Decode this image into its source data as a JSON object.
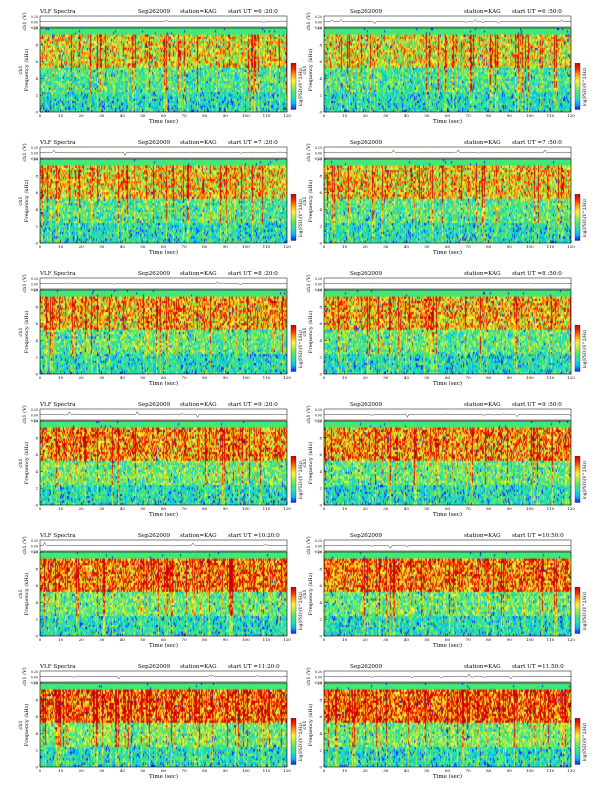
{
  "page": {
    "title_prefix": "VLF Spectra",
    "station": "station=KAG",
    "strip_ylabel": "ch1 (V)",
    "spec_ylabel": "Frequency (kHz)",
    "spec_ylabel_side": "ch1",
    "cbar_label": "log(PSD)(V^2/Hz)",
    "xlabel": "Time (sec)",
    "strip_ticks": [
      "0.20",
      "0.00",
      "-0.20"
    ],
    "freq_ticks": [
      "10",
      "8",
      "6",
      "4",
      "2",
      "0"
    ],
    "cbar_ticks": [
      "-1",
      "-3",
      "-5",
      "-7"
    ],
    "colors": {
      "spectrum": [
        "#1a1aff",
        "#00b8ff",
        "#27e0b0",
        "#47e873",
        "#a6f03c",
        "#fff23a",
        "#ffa000",
        "#ff2a00",
        "#cc0000"
      ],
      "background": "#ffffff"
    }
  },
  "chart_data": [
    {
      "type": "heatmap",
      "panel": "top-left",
      "title": "VLF Spectra",
      "date": "Sep262009",
      "station": "station=KAG",
      "start_label": "start  UT  =6 :20:0",
      "xlabel": "Time (sec)",
      "ylabel": "Frequency (kHz)",
      "xlim": [
        0,
        120
      ],
      "ylim": [
        0,
        10
      ],
      "xticks": [
        0,
        10,
        20,
        30,
        40,
        50,
        60,
        70,
        80,
        90,
        100,
        110,
        120
      ],
      "yticks": [
        0,
        2,
        4,
        6,
        8,
        10
      ],
      "colorbar": "log(PSD)(V^2/Hz)",
      "strip_ylabel": "ch1 (V)",
      "strip_ylim": [
        -0.2,
        0.2
      ]
    },
    {
      "type": "heatmap",
      "panel": "top-right",
      "title": "",
      "date": "Sep262009",
      "station": "station=KAG",
      "start_label": "start  UT  =6 :50:0",
      "xlabel": "Time (sec)",
      "ylabel": "Frequency (kHz)",
      "xlim": [
        0,
        120
      ],
      "ylim": [
        0,
        10
      ],
      "xticks": [
        0,
        10,
        20,
        30,
        40,
        50,
        60,
        70,
        80,
        90,
        100,
        110,
        120
      ],
      "yticks": [
        0,
        2,
        4,
        6,
        8,
        10
      ],
      "colorbar": "log(PSD)(V^2/Hz)",
      "strip_ylabel": "ch1 (V)",
      "strip_ylim": [
        -0.2,
        0.2
      ]
    },
    {
      "type": "heatmap",
      "panel": "row2-left",
      "title": "VLF Spectra",
      "date": "Sep262009",
      "station": "station=KAG",
      "start_label": "start  UT  =7 :20:0",
      "xlabel": "Time (sec)",
      "ylabel": "Frequency (kHz)",
      "xlim": [
        0,
        120
      ],
      "ylim": [
        0,
        10
      ],
      "xticks": [
        0,
        10,
        20,
        30,
        40,
        50,
        60,
        70,
        80,
        90,
        100,
        110,
        120
      ],
      "yticks": [
        0,
        2,
        4,
        6,
        8,
        10
      ],
      "colorbar": "log(PSD)(V^2/Hz)",
      "strip_ylabel": "ch1 (V)",
      "strip_ylim": [
        -0.2,
        0.2
      ]
    },
    {
      "type": "heatmap",
      "panel": "row2-right",
      "title": "",
      "date": "Sep262009",
      "station": "station=KAG",
      "start_label": "start  UT  =7 :50:0",
      "xlabel": "Time (sec)",
      "ylabel": "Frequency (kHz)",
      "xlim": [
        0,
        120
      ],
      "ylim": [
        0,
        10
      ],
      "xticks": [
        0,
        10,
        20,
        30,
        40,
        50,
        60,
        70,
        80,
        90,
        100,
        110,
        120
      ],
      "yticks": [
        0,
        2,
        4,
        6,
        8,
        10
      ],
      "colorbar": "log(PSD)(V^2/Hz)",
      "strip_ylabel": "ch1 (V)",
      "strip_ylim": [
        -0.2,
        0.2
      ]
    },
    {
      "type": "heatmap",
      "panel": "row3-left",
      "title": "VLF Spectra",
      "date": "Sep262009",
      "station": "station=KAG",
      "start_label": "start  UT  =8 :20:0",
      "xlabel": "Time (sec)",
      "ylabel": "Frequency (kHz)",
      "xlim": [
        0,
        120
      ],
      "ylim": [
        0,
        10
      ],
      "xticks": [
        0,
        10,
        20,
        30,
        40,
        50,
        60,
        70,
        80,
        90,
        100,
        110,
        120
      ],
      "yticks": [
        0,
        2,
        4,
        6,
        8,
        10
      ],
      "colorbar": "log(PSD)(V^2/Hz)",
      "strip_ylabel": "ch1 (V)",
      "strip_ylim": [
        -0.2,
        0.2
      ]
    },
    {
      "type": "heatmap",
      "panel": "row3-right",
      "title": "",
      "date": "Sep262009",
      "station": "station=KAG",
      "start_label": "start  UT  =8 :50:0",
      "xlabel": "Time (sec)",
      "ylabel": "Frequency (kHz)",
      "xlim": [
        0,
        120
      ],
      "ylim": [
        0,
        10
      ],
      "xticks": [
        0,
        10,
        20,
        30,
        40,
        50,
        60,
        70,
        80,
        90,
        100,
        110,
        120
      ],
      "yticks": [
        0,
        2,
        4,
        6,
        8,
        10
      ],
      "colorbar": "log(PSD)(V^2/Hz)",
      "strip_ylabel": "ch1 (V)",
      "strip_ylim": [
        -0.2,
        0.2
      ]
    },
    {
      "type": "heatmap",
      "panel": "row4-left",
      "title": "VLF Spectra",
      "date": "Sep262009",
      "station": "station=KAG",
      "start_label": "start  UT  =9 :20:0",
      "xlabel": "Time (sec)",
      "ylabel": "Frequency (kHz)",
      "xlim": [
        0,
        120
      ],
      "ylim": [
        0,
        10
      ],
      "xticks": [
        0,
        10,
        20,
        30,
        40,
        50,
        60,
        70,
        80,
        90,
        100,
        110,
        120
      ],
      "yticks": [
        0,
        2,
        4,
        6,
        8,
        10
      ],
      "colorbar": "log(PSD)(V^2/Hz)",
      "strip_ylabel": "ch1 (V)",
      "strip_ylim": [
        -0.2,
        0.2
      ]
    },
    {
      "type": "heatmap",
      "panel": "row4-right",
      "title": "",
      "date": "Sep262009",
      "station": "station=KAG",
      "start_label": "start  UT  =9 :50:0",
      "xlabel": "Time (sec)",
      "ylabel": "Frequency (kHz)",
      "xlim": [
        0,
        120
      ],
      "ylim": [
        0,
        10
      ],
      "xticks": [
        0,
        10,
        20,
        30,
        40,
        50,
        60,
        70,
        80,
        90,
        100,
        110,
        120
      ],
      "yticks": [
        0,
        2,
        4,
        6,
        8,
        10
      ],
      "colorbar": "log(PSD)(V^2/Hz)",
      "strip_ylabel": "ch1 (V)",
      "strip_ylim": [
        -0.2,
        0.2
      ]
    },
    {
      "type": "heatmap",
      "panel": "row5-left",
      "title": "VLF Spectra",
      "date": "Sep262009",
      "station": "station=KAG",
      "start_label": "start  UT  =10:20:0",
      "xlabel": "Time (sec)",
      "ylabel": "Frequency (kHz)",
      "xlim": [
        0,
        120
      ],
      "ylim": [
        0,
        10
      ],
      "xticks": [
        0,
        10,
        20,
        30,
        40,
        50,
        60,
        70,
        80,
        90,
        100,
        110,
        120
      ],
      "yticks": [
        0,
        2,
        4,
        6,
        8,
        10
      ],
      "colorbar": "log(PSD)(V^2/Hz)",
      "strip_ylabel": "ch1 (V)",
      "strip_ylim": [
        -0.2,
        0.2
      ]
    },
    {
      "type": "heatmap",
      "panel": "row5-right",
      "title": "",
      "date": "Sep262009",
      "station": "station=KAG",
      "start_label": "start  UT  =10:50:0",
      "xlabel": "Time (sec)",
      "ylabel": "Frequency (kHz)",
      "xlim": [
        0,
        120
      ],
      "ylim": [
        0,
        10
      ],
      "xticks": [
        0,
        10,
        20,
        30,
        40,
        50,
        60,
        70,
        80,
        90,
        100,
        110,
        120
      ],
      "yticks": [
        0,
        2,
        4,
        6,
        8,
        10
      ],
      "colorbar": "log(PSD)(V^2/Hz)",
      "strip_ylabel": "ch1 (V)",
      "strip_ylim": [
        -0.2,
        0.2
      ]
    },
    {
      "type": "heatmap",
      "panel": "row6-left",
      "title": "VLF Spectra",
      "date": "Sep262009",
      "station": "station=KAG",
      "start_label": "start  UT  =11:20:0",
      "xlabel": "Time (sec)",
      "ylabel": "Frequency (kHz)",
      "xlim": [
        0,
        120
      ],
      "ylim": [
        0,
        10
      ],
      "xticks": [
        0,
        10,
        20,
        30,
        40,
        50,
        60,
        70,
        80,
        90,
        100,
        110,
        120
      ],
      "yticks": [
        0,
        2,
        4,
        6,
        8,
        10
      ],
      "colorbar": "log(PSD)(V^2/Hz)",
      "strip_ylabel": "ch1 (V)",
      "strip_ylim": [
        -0.2,
        0.2
      ]
    },
    {
      "type": "heatmap",
      "panel": "row6-right",
      "title": "",
      "date": "Sep262009",
      "station": "station=KAG",
      "start_label": "start  UT  =11:50:0",
      "xlabel": "Time (sec)",
      "ylabel": "Frequency (kHz)",
      "xlim": [
        0,
        120
      ],
      "ylim": [
        0,
        10
      ],
      "xticks": [
        0,
        10,
        20,
        30,
        40,
        50,
        60,
        70,
        80,
        90,
        100,
        110,
        120
      ],
      "yticks": [
        0,
        2,
        4,
        6,
        8,
        10
      ],
      "colorbar": "log(PSD)(V^2/Hz)",
      "strip_ylabel": "ch1 (V)",
      "strip_ylim": [
        -0.2,
        0.2
      ]
    }
  ]
}
